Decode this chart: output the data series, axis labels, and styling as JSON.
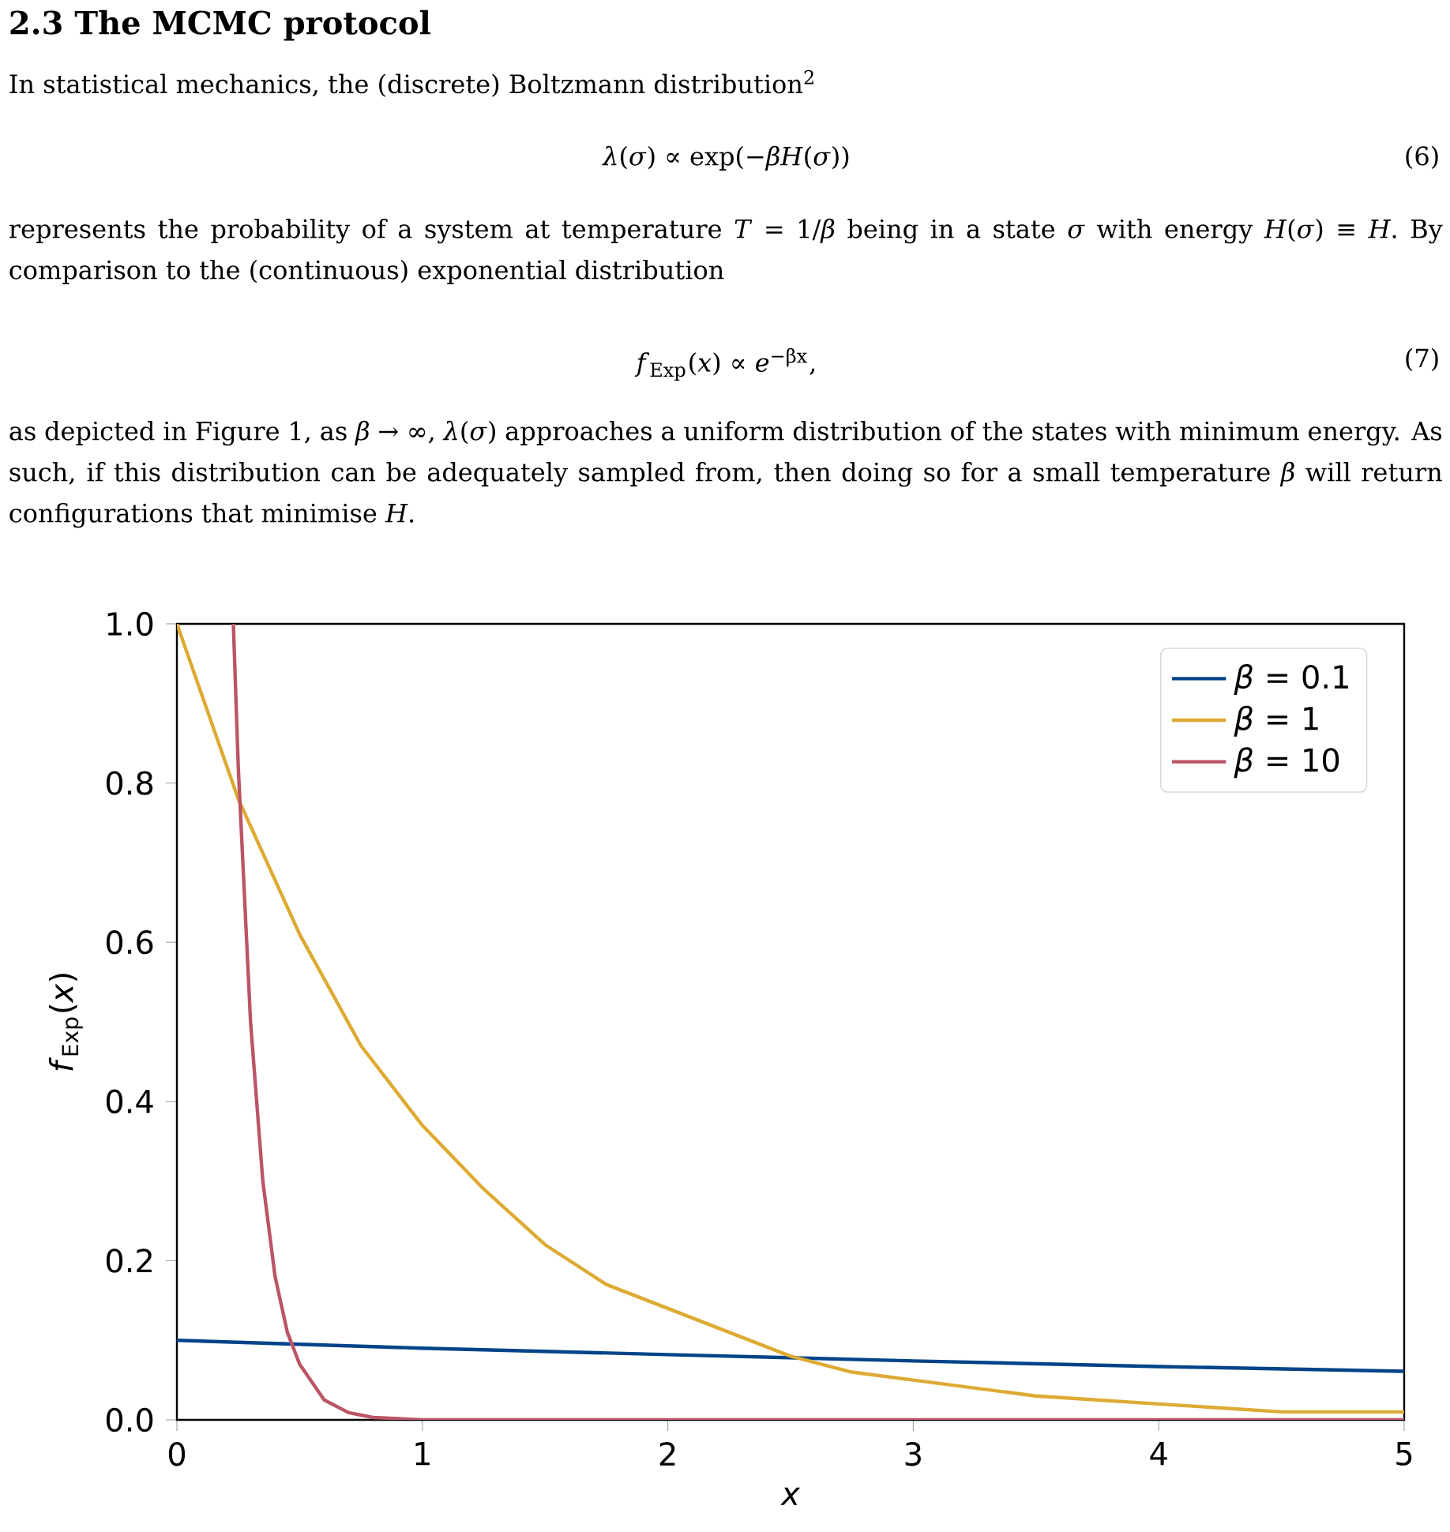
{
  "chart_data": {
    "type": "line",
    "title": "2.3 The MCMC protocol",
    "annotations": [
      "In statistical mechanics, the (discrete) Boltzmann distribution$^{2}$",
      "*λ*(*σ*) ∝ exp(−*βH*(*σ*))",
      "(6)",
      "represents the probability of a system at temperature *T* = 1/*β* being in a state *σ* with energy *H*(*σ*) ≡ *H*. By comparison to the (continuous) exponential distribution",
      "*f*$_{Exp}$(*x*) ∝ *e*$^{−βx}$,",
      "(7)",
      "as depicted in Figure 1, as *β* → ∞, *λ*(*σ*) approaches a uniform distribution of the states with minimum energy. As such, if this distribution can be adequately sampled from, then doing so for a small temperature *β* will return configurations that minimise *H*."
    ],
    "xlabel": "x",
    "ylabel": "*f*$_{Exp}$(*x*)",
    "xlim": [
      0,
      5
    ],
    "ylim": [
      0,
      1
    ],
    "xticks": [
      0,
      1,
      2,
      3,
      4,
      5
    ],
    "yticks": [
      {
        "value": 0,
        "label": "0.0"
      },
      {
        "value": 0.2,
        "label": "0.2"
      },
      {
        "value": 0.4,
        "label": "0.4"
      },
      {
        "value": 0.6,
        "label": "0.6"
      },
      {
        "value": 0.8,
        "label": "0.8"
      },
      {
        "value": 1,
        "label": "1.0"
      }
    ],
    "legend": "top right",
    "marker": "none",
    "line_style": "solid",
    "series": [
      {
        "name": "*β* = 0.1",
        "color": "#004488",
        "x": [
          0,
          1,
          2,
          3,
          4,
          5
        ],
        "values": [
          0.1,
          0.09,
          0.082,
          0.074,
          0.067,
          0.061
        ]
      },
      {
        "name": "*β* = 1",
        "color": "#ddaa33",
        "x": [
          0,
          0.25,
          0.5,
          0.75,
          1,
          1.25,
          1.5,
          1.75,
          2,
          2.25,
          2.5,
          2.75,
          3,
          3.5,
          4,
          4.5,
          5
        ],
        "values": [
          1.0,
          0.78,
          0.61,
          0.47,
          0.37,
          0.29,
          0.22,
          0.17,
          0.14,
          0.11,
          0.08,
          0.06,
          0.05,
          0.03,
          0.02,
          0.01,
          0.01
        ]
      },
      {
        "name": "*β* = 10",
        "color": "#bb5566",
        "x": [
          0.23,
          0.25,
          0.3,
          0.35,
          0.4,
          0.45,
          0.5,
          0.6,
          0.7,
          0.8,
          1,
          2,
          3,
          4,
          5
        ],
        "values": [
          1.0,
          0.82,
          0.5,
          0.3,
          0.18,
          0.11,
          0.07,
          0.025,
          0.009,
          0.003,
          0,
          0,
          0,
          0,
          0
        ]
      }
    ]
  }
}
